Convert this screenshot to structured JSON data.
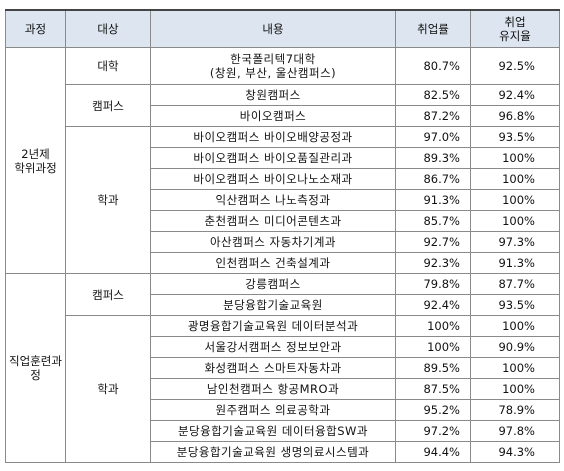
{
  "header": {
    "course": "과정",
    "target": "대상",
    "content": "내용",
    "employment_rate": "취업률",
    "retention_rate": [
      "취업",
      "유지율"
    ]
  },
  "groups": [
    {
      "course": [
        "2년제",
        "학위과정"
      ],
      "sections": [
        {
          "target": "대학",
          "rows": [
            [
              [
                "한국폴리텍7대학",
                "(창원, 부산, 울산캠퍼스)"
              ],
              "80.7%",
              "92.5%"
            ]
          ]
        },
        {
          "target": "캠퍼스",
          "rows": [
            [
              "창원캠퍼스",
              "82.5%",
              "92.4%"
            ],
            [
              "바이오캠퍼스",
              "87.2%",
              "96.8%"
            ]
          ]
        },
        {
          "target": "학과",
          "rows": [
            [
              "바이오캠퍼스 바이오배양공정과",
              "97.0%",
              "93.5%"
            ],
            [
              "바이오캠퍼스 바이오품질관리과",
              "89.3%",
              "100%"
            ],
            [
              "바이오캠퍼스 바이오나노소재과",
              "86.7%",
              "100%"
            ],
            [
              "익산캠퍼스 나노측정과",
              "91.3%",
              "100%"
            ],
            [
              "춘천캠퍼스 미디어콘텐츠과",
              "85.7%",
              "100%"
            ],
            [
              "아산캠퍼스 자동차기계과",
              "92.7%",
              "97.3%"
            ],
            [
              "인천캠퍼스 건축설계과",
              "92.3%",
              "91.3%"
            ]
          ]
        }
      ]
    },
    {
      "course": [
        "직업훈련과",
        "정"
      ],
      "sections": [
        {
          "target": "캠퍼스",
          "rows": [
            [
              "강릉캠퍼스",
              "79.8%",
              "87.7%"
            ],
            [
              "분당융합기술교육원",
              "92.4%",
              "93.5%"
            ]
          ]
        },
        {
          "target": "학과",
          "rows": [
            [
              "광명융합기술교육원 데이터분석과",
              "100%",
              "100%"
            ],
            [
              "서울강서캠퍼스 정보보안과",
              "100%",
              "90.9%"
            ],
            [
              "화성캠퍼스 스마트자동차과",
              "89.5%",
              "100%"
            ],
            [
              "남인천캠퍼스 항공MRO과",
              "87.5%",
              "100%"
            ],
            [
              "원주캠퍼스 의료공학과",
              "95.2%",
              "78.9%"
            ],
            [
              "분당융합기술교육원 데이터융합SW과",
              "97.2%",
              "97.8%"
            ],
            [
              "분당융합기술교육원 생명의료시스템과",
              "94.4%",
              "94.3%"
            ]
          ]
        }
      ]
    }
  ]
}
